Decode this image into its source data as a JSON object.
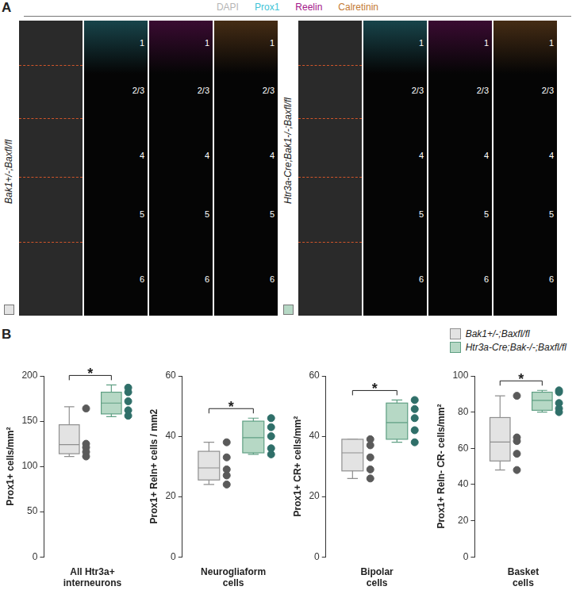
{
  "panel_a": {
    "label": "A",
    "channels": [
      {
        "name": "DAPI",
        "color": "#b5b5b5"
      },
      {
        "name": "Prox1",
        "color": "#3ec3d6"
      },
      {
        "name": "Reelin",
        "color": "#a3168a"
      },
      {
        "name": "Calretinin",
        "color": "#c47a34"
      }
    ],
    "layers": [
      "1",
      "2/3",
      "4",
      "5",
      "6"
    ],
    "genotypes": [
      "Bak1+/-;Baxfl/fl",
      "Htr3a-Cre;Bak1-/-;Baxfl/fl"
    ]
  },
  "panel_b": {
    "label": "B",
    "legend": "upper right",
    "groups": [
      {
        "name": "Bak1+/-;Baxfl/fl",
        "color": "#e3e3e3"
      },
      {
        "name": "Htr3a-Cre;Bak-/-;Baxfl/fl",
        "color": "#b6d8c5"
      }
    ]
  },
  "chart_data": [
    {
      "type": "box",
      "y_label": "Prox1+ cells/mm²",
      "x_label": [
        "All Htr3a+",
        "interneurons"
      ],
      "ylim": [
        0,
        200
      ],
      "yticks": [
        0,
        50,
        100,
        150,
        200
      ],
      "grid": false,
      "tick_labels": "y",
      "significance": "*",
      "series": [
        {
          "points": [
            164,
            125,
            121,
            116,
            111
          ],
          "box": {
            "min": 111,
            "q1": 114,
            "median": 124,
            "q3": 146,
            "max": 166
          }
        },
        {
          "points": [
            187,
            182,
            172,
            162,
            156
          ],
          "box": {
            "min": 155,
            "q1": 158,
            "median": 170,
            "q3": 182,
            "max": 190
          }
        }
      ]
    },
    {
      "type": "box",
      "y_label": "Prox1+ Reln+ cells / mm2",
      "x_label": [
        "Neurogliaform",
        "cells"
      ],
      "ylim": [
        0,
        60
      ],
      "yticks": [
        0,
        20,
        40,
        60
      ],
      "grid": false,
      "tick_labels": "y",
      "significance": "*",
      "series": [
        {
          "points": [
            38,
            33,
            29,
            27,
            24
          ],
          "box": {
            "min": 24,
            "q1": 25.5,
            "median": 29.5,
            "q3": 35,
            "max": 38
          }
        },
        {
          "points": [
            46,
            43,
            40,
            36,
            34
          ],
          "box": {
            "min": 34,
            "q1": 34.5,
            "median": 39.5,
            "q3": 45,
            "max": 46
          }
        }
      ]
    },
    {
      "type": "box",
      "y_label": "Prox1+ CR+ cells/mm²",
      "x_label": [
        "Bipolar",
        "cells"
      ],
      "ylim": [
        0,
        60
      ],
      "yticks": [
        0,
        20,
        40,
        60
      ],
      "grid": false,
      "tick_labels": "y",
      "significance": "*",
      "series": [
        {
          "points": [
            39,
            37,
            33,
            29,
            26
          ],
          "box": {
            "min": 26,
            "q1": 28.5,
            "median": 34.5,
            "q3": 39,
            "max": 39
          }
        },
        {
          "points": [
            52,
            49,
            46,
            42,
            38
          ],
          "box": {
            "min": 38,
            "q1": 39,
            "median": 44.5,
            "q3": 51,
            "max": 52
          }
        }
      ]
    },
    {
      "type": "box",
      "y_label": "Prox1+ Reln- CR- cells/mm²",
      "x_label": [
        "Basket",
        "cells"
      ],
      "ylim": [
        0,
        100
      ],
      "yticks": [
        0,
        20,
        40,
        60,
        80,
        100
      ],
      "grid": false,
      "tick_labels": "y",
      "significance": "*",
      "series": [
        {
          "points": [
            89,
            66,
            64,
            57,
            48
          ],
          "box": {
            "min": 48,
            "q1": 53,
            "median": 63.5,
            "q3": 77,
            "max": 89
          }
        },
        {
          "points": [
            92,
            91,
            85,
            82,
            80
          ],
          "box": {
            "min": 80,
            "q1": 81,
            "median": 86.5,
            "q3": 91,
            "max": 92
          }
        }
      ]
    }
  ]
}
